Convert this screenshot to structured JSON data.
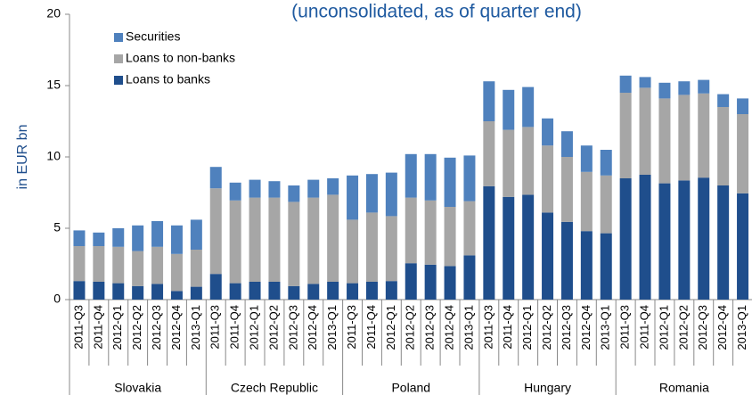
{
  "chart_data": {
    "type": "stacked_bar",
    "title": "(unconsolidated, as of quarter end)",
    "y_label": "in EUR bn",
    "ylim": [
      0,
      20
    ],
    "yticks": [
      0,
      5,
      10,
      15,
      20
    ],
    "legend": "top-left",
    "groups": [
      {
        "name": "Slovakia",
        "categories": [
          "2011-Q3",
          "2011-Q4",
          "2012-Q1",
          "2012-Q2",
          "2012-Q3",
          "2012-Q4",
          "2013-Q1"
        ]
      },
      {
        "name": "Czech Republic",
        "categories": [
          "2011-Q3",
          "2011-Q4",
          "2012-Q1",
          "2012-Q2",
          "2012-Q3",
          "2012-Q4",
          "2013-Q1"
        ]
      },
      {
        "name": "Poland",
        "categories": [
          "2011-Q3",
          "2011-Q4",
          "2012-Q1",
          "2012-Q2",
          "2012-Q3",
          "2012-Q4",
          "2013-Q1"
        ]
      },
      {
        "name": "Hungary",
        "categories": [
          "2011-Q3",
          "2011-Q4",
          "2012-Q1",
          "2012-Q2",
          "2012-Q3",
          "2012-Q4",
          "2013-Q1"
        ]
      },
      {
        "name": "Romania",
        "categories": [
          "2011-Q3",
          "2011-Q4",
          "2012-Q1",
          "2012-Q2",
          "2012-Q3",
          "2012-Q4",
          "2013-Q1"
        ]
      }
    ],
    "series": [
      {
        "name": "Securities",
        "color": "#4f81bd",
        "values": [
          1.1,
          0.95,
          1.3,
          1.8,
          1.8,
          2.0,
          2.1,
          1.5,
          1.25,
          1.25,
          1.15,
          1.15,
          1.25,
          1.15,
          3.1,
          2.7,
          3.05,
          3.05,
          3.25,
          3.45,
          3.2,
          2.8,
          2.8,
          2.8,
          1.9,
          1.8,
          1.85,
          1.8,
          1.2,
          0.75,
          1.1,
          0.95,
          0.95,
          0.9,
          1.1
        ]
      },
      {
        "name": "Loans to non-banks",
        "color": "#a6a6a6",
        "values": [
          2.45,
          2.5,
          2.55,
          2.45,
          2.6,
          2.6,
          2.6,
          6.0,
          5.8,
          5.9,
          5.9,
          5.9,
          6.05,
          6.1,
          4.45,
          4.85,
          4.55,
          4.6,
          4.5,
          4.15,
          3.8,
          4.55,
          4.7,
          4.75,
          4.7,
          4.55,
          4.15,
          4.05,
          6.0,
          6.1,
          5.95,
          6.0,
          5.9,
          5.5,
          5.55
        ]
      },
      {
        "name": "Loans to banks",
        "color": "#1f4e8c",
        "values": [
          1.3,
          1.25,
          1.15,
          0.95,
          1.1,
          0.6,
          0.9,
          1.8,
          1.15,
          1.25,
          1.25,
          0.95,
          1.1,
          1.25,
          1.15,
          1.25,
          1.3,
          2.55,
          2.45,
          2.35,
          3.1,
          7.95,
          7.2,
          7.35,
          6.1,
          5.45,
          4.8,
          4.65,
          8.5,
          8.75,
          8.15,
          8.35,
          8.55,
          8.0,
          7.45
        ]
      }
    ]
  }
}
